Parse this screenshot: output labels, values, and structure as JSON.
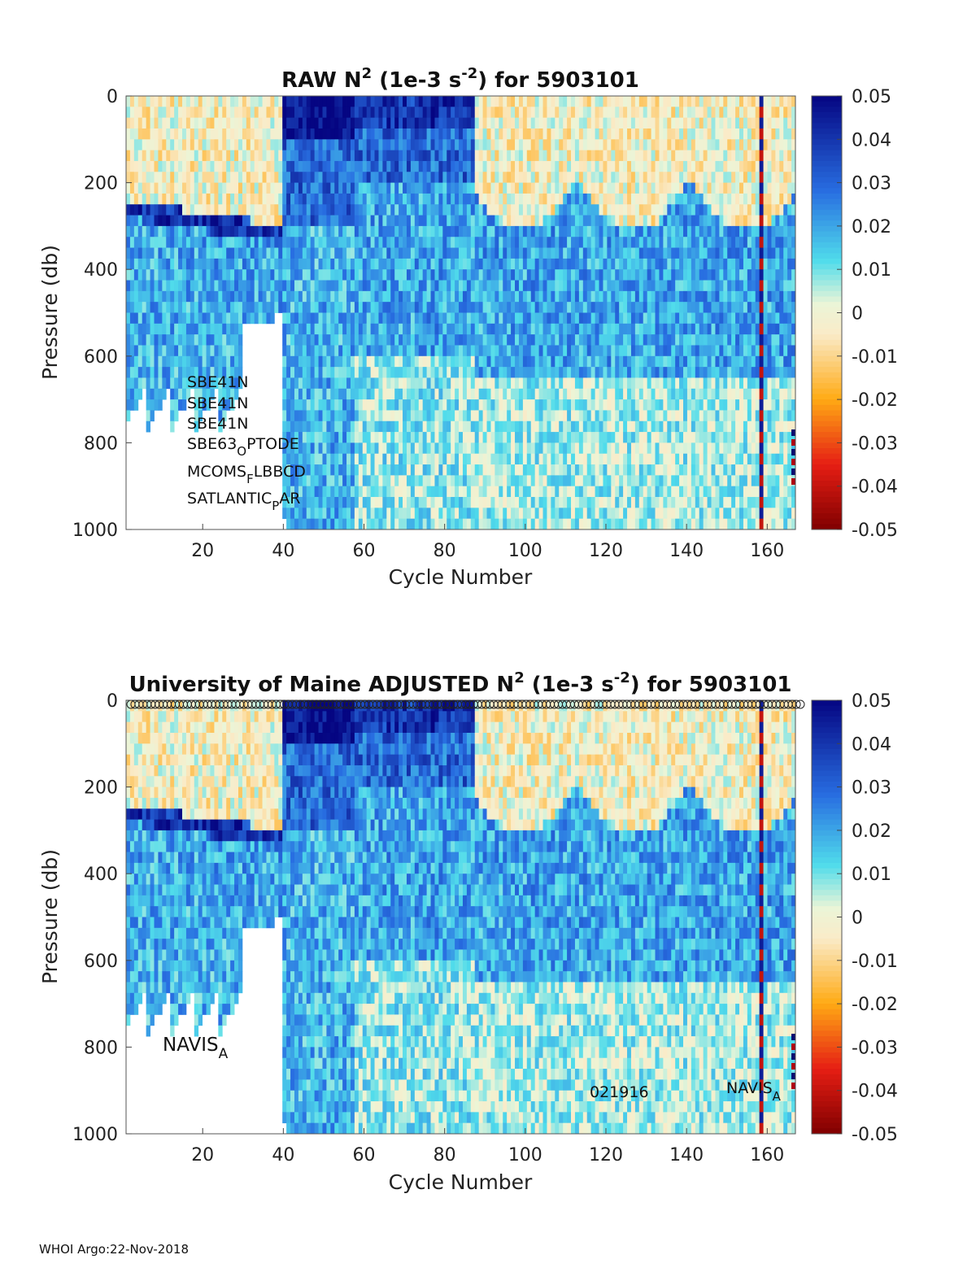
{
  "footer": "WHOI Argo:22-Nov-2018",
  "chart_data": [
    {
      "type": "heatmap",
      "title_pre": "RAW N",
      "title_sup1": "2",
      "title_mid": " (1e-3 s",
      "title_sup2": "-2",
      "title_post": ") for 5903101",
      "xlabel": "Cycle Number",
      "ylabel": "Pressure (db)",
      "xlim": [
        1,
        167
      ],
      "ylim": [
        0,
        1000
      ],
      "xticks": [
        20,
        40,
        60,
        80,
        100,
        120,
        140,
        160
      ],
      "yticks": [
        0,
        200,
        400,
        600,
        800,
        1000
      ],
      "colorbar": {
        "range": [
          -0.05,
          0.05
        ],
        "ticks": [
          "0.05",
          "0.04",
          "0.03",
          "0.02",
          "0.01",
          "0",
          "-0.01",
          "-0.02",
          "-0.03",
          "-0.04",
          "-0.05"
        ]
      },
      "annotations": [
        {
          "text": "SBE41N"
        },
        {
          "text": "SBE41N"
        },
        {
          "text": "SBE41N"
        },
        {
          "text": "SBE63",
          "sub": "O",
          "post": "PTODE"
        },
        {
          "text": "MCOMS",
          "sub": "F",
          "post": "LBBCD"
        },
        {
          "text": "SATLANTIC",
          "sub": "P",
          "post": "AR"
        }
      ]
    },
    {
      "type": "heatmap",
      "title_pre": "University of Maine  ADJUSTED N",
      "title_sup1": "2",
      "title_mid": " (1e-3 s",
      "title_sup2": "-2",
      "title_post": ") for 5903101",
      "xlabel": "Cycle Number",
      "ylabel": "Pressure (db)",
      "xlim": [
        1,
        167
      ],
      "ylim": [
        0,
        1000
      ],
      "xticks": [
        20,
        40,
        60,
        80,
        100,
        120,
        140,
        160
      ],
      "yticks": [
        0,
        200,
        400,
        600,
        800,
        1000
      ],
      "colorbar": {
        "range": [
          -0.05,
          0.05
        ],
        "ticks": [
          "0.05",
          "0.04",
          "0.03",
          "0.02",
          "0.01",
          "0",
          "-0.01",
          "-0.02",
          "-0.03",
          "-0.04",
          "-0.05"
        ]
      },
      "annotations": [
        {
          "text": "NAVIS",
          "sub": "A",
          "post": ""
        },
        {
          "text": "021916"
        },
        {
          "text": "NAVIS",
          "sub": "A",
          "post": ""
        }
      ]
    }
  ]
}
